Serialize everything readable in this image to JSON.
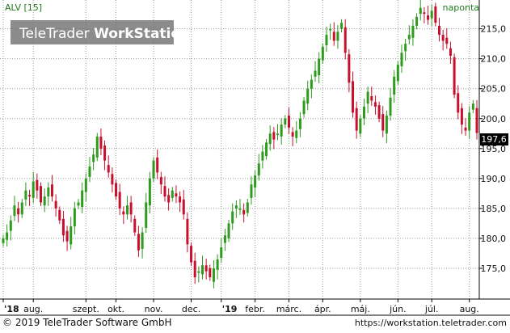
{
  "header": {
    "symbol_label": "ALV [15]",
    "period_label": "naponta",
    "watermark": "TeleTrader WorkStation",
    "watermark_part1": "TeleTrader ",
    "watermark_part2": "WorkStation"
  },
  "footer": {
    "copyright": "© 2019 TeleTrader Software GmbH",
    "url": "https://workstation.teletrader.com"
  },
  "colors": {
    "up": "#2e9a1e",
    "down": "#c8102e",
    "grid": "#9a9a9a",
    "label": "#1f7a1f",
    "text": "#111111",
    "last_badge_bg": "#000000",
    "last_badge_fg": "#ffffff"
  },
  "chart_data": {
    "type": "candlestick",
    "ylim": [
      170,
      219
    ],
    "y_ticks": [
      175,
      180,
      185,
      190,
      195,
      200,
      205,
      210,
      215
    ],
    "y_tick_labels": [
      "175,0",
      "180,0",
      "185,0",
      "190,0",
      "195,0",
      "200,0",
      "205,0",
      "210,0",
      "215,0"
    ],
    "last_value": 197.6,
    "last_value_label": "197,6",
    "x_labels": [
      "'18",
      "aug.",
      "szept.",
      "okt.",
      "nov.",
      "dec.",
      "'19",
      "febr.",
      "márc.",
      "ápr.",
      "máj.",
      "jún.",
      "júl.",
      "aug."
    ],
    "x_label_index": [
      0,
      8,
      22,
      30,
      40,
      50,
      58,
      67,
      76,
      85,
      95,
      105,
      114,
      124
    ],
    "series_close": [
      180,
      181,
      183,
      185.5,
      184,
      186,
      188,
      187,
      189.5,
      188,
      186,
      187,
      188.5,
      187,
      185,
      183,
      180.5,
      179.5,
      182,
      185,
      186,
      188,
      190,
      192,
      194,
      197,
      195,
      193,
      191,
      189,
      187,
      185,
      184,
      185.5,
      184,
      181,
      178,
      181,
      186,
      190,
      193,
      191,
      189,
      187,
      186,
      188,
      187,
      186,
      184,
      179,
      176,
      173.5,
      174.5,
      175.5,
      174.5,
      173.5,
      175,
      176.5,
      178.5,
      180.5,
      182.5,
      184.5,
      185.5,
      185,
      184,
      186,
      189,
      190.5,
      192.5,
      194.5,
      196,
      197.5,
      196.5,
      197.5,
      199,
      200,
      198.5,
      197,
      198,
      200,
      203,
      205,
      206.5,
      208,
      210,
      212,
      214,
      215,
      213,
      214.5,
      216,
      211,
      206,
      201,
      198,
      200,
      202,
      204.5,
      203,
      202,
      200,
      198,
      200.5,
      203.5,
      207,
      209,
      211,
      212.5,
      214,
      215.5,
      217,
      218.5,
      217.5,
      216.5,
      218,
      216,
      214,
      213,
      212.5,
      210.5,
      204,
      201,
      199,
      198,
      201,
      202.5,
      197.6
    ]
  }
}
